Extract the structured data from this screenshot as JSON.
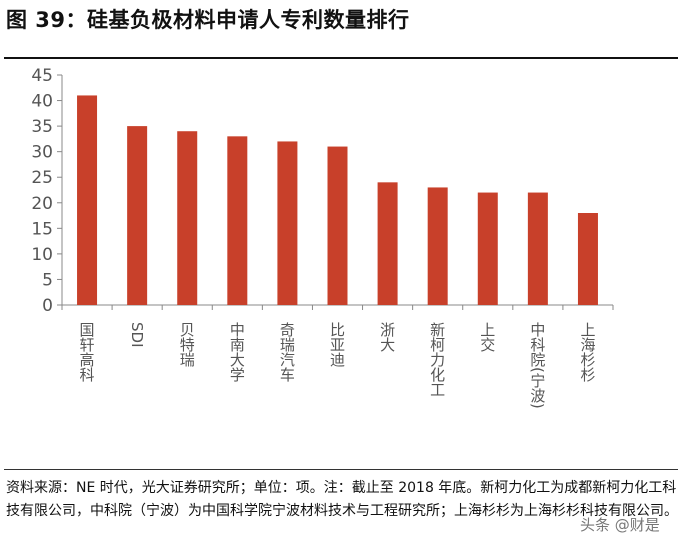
{
  "title": "图 39：硅基负极材料申请人专利数量排行",
  "note": "资料来源：NE 时代，光大证券研究所；单位：项。注：截止至 2018 年底。新柯力化工为成都新柯力化工科技有限公司，中科院（宁波）为中国科学院宁波材料技术与工程研究所；上海杉杉为上海杉杉科技有限公司。",
  "watermark": "头条 @财是",
  "chart_data": {
    "type": "bar",
    "categories": [
      "国轩高科",
      "SDI",
      "贝特瑞",
      "中南大学",
      "奇瑞汽车",
      "比亚迪",
      "浙大",
      "新柯力化工",
      "上交",
      "中科院(宁波)",
      "上海杉杉"
    ],
    "values": [
      41,
      35,
      34,
      33,
      32,
      31,
      24,
      23,
      22,
      22,
      18
    ],
    "ylim": [
      0,
      45
    ],
    "yticks": [
      0,
      5,
      10,
      15,
      20,
      25,
      30,
      35,
      40,
      45
    ],
    "grid": false,
    "bar_color": "#C8402A"
  }
}
